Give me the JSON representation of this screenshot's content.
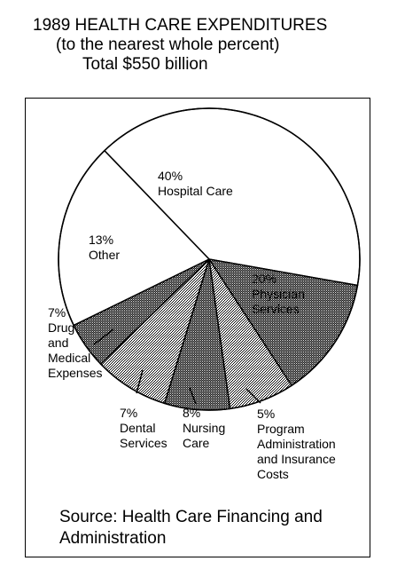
{
  "header": {
    "title": "1989 HEALTH CARE EXPENDITURES",
    "subtitle": "(to the nearest whole percent)",
    "total": "Total $550 billion"
  },
  "source": "Source: Health Care Financing and Administration",
  "chart_data": {
    "type": "pie",
    "title": "1989 HEALTH CARE EXPENDITURES",
    "unit": "percent",
    "slices": [
      {
        "label": "Hospital Care",
        "value": 40,
        "value_label": "40%",
        "pattern": "white",
        "label_lines": [
          "40%",
          "Hospital Care"
        ]
      },
      {
        "label": "Physician Services",
        "value": 20,
        "value_label": "20%",
        "pattern": "white",
        "label_lines": [
          "20%",
          "Physician",
          "Services"
        ]
      },
      {
        "label": "Program Administration and Insurance Costs",
        "value": 5,
        "value_label": "5%",
        "pattern": "dark-dots",
        "label_lines": [
          "5%",
          "Program",
          "Administration",
          "and Insurance",
          "Costs"
        ]
      },
      {
        "label": "Nursing Care",
        "value": 8,
        "value_label": "8%",
        "pattern": "light-dots",
        "label_lines": [
          "8%",
          "Nursing",
          "Care"
        ]
      },
      {
        "label": "Dental Services",
        "value": 7,
        "value_label": "7%",
        "pattern": "dark-dots",
        "label_lines": [
          "7%",
          "Dental",
          "Services"
        ]
      },
      {
        "label": "Drug and Medical Expenses",
        "value": 7,
        "value_label": "7%",
        "pattern": "light-dots",
        "label_lines": [
          "7%",
          "Drug",
          "and",
          "Medical",
          "Expenses"
        ]
      },
      {
        "label": "Other",
        "value": 13,
        "value_label": "13%",
        "pattern": "dark-dots",
        "label_lines": [
          "13%",
          "Other"
        ]
      }
    ]
  }
}
